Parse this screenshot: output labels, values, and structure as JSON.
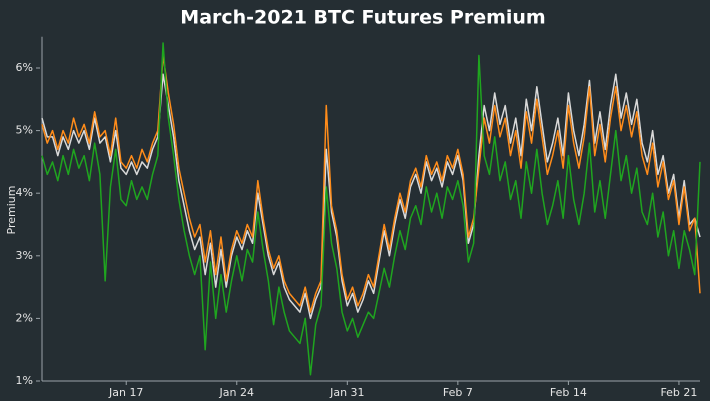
{
  "chart_data": {
    "type": "line",
    "title": "March-2021 BTC Futures Premium",
    "y_label": "Premium",
    "categories": [
      null,
      null,
      null,
      null,
      null,
      null,
      null,
      null,
      null,
      null,
      null,
      null,
      null,
      null,
      null,
      null,
      "Jan 17",
      null,
      null,
      null,
      null,
      null,
      null,
      null,
      null,
      null,
      null,
      null,
      null,
      null,
      null,
      null,
      null,
      null,
      null,
      null,
      null,
      "Jan 24",
      null,
      null,
      null,
      null,
      null,
      null,
      null,
      null,
      null,
      null,
      null,
      null,
      null,
      null,
      null,
      null,
      null,
      null,
      null,
      null,
      "Jan 31",
      null,
      null,
      null,
      null,
      null,
      null,
      null,
      null,
      null,
      null,
      null,
      null,
      null,
      null,
      null,
      null,
      null,
      null,
      null,
      null,
      "Feb 7",
      null,
      null,
      null,
      null,
      null,
      null,
      null,
      null,
      null,
      null,
      null,
      null,
      null,
      null,
      null,
      null,
      null,
      null,
      null,
      null,
      "Feb 14",
      null,
      null,
      null,
      null,
      null,
      null,
      null,
      null,
      null,
      null,
      null,
      null,
      null,
      null,
      null,
      null,
      null,
      null,
      null,
      null,
      "Feb 21",
      null,
      null,
      null,
      null
    ],
    "series": [
      {
        "color": "#d9d9d9",
        "values": [
          5.2,
          4.9,
          4.9,
          4.6,
          4.9,
          4.7,
          5.0,
          4.8,
          5.0,
          4.7,
          5.2,
          4.8,
          4.9,
          4.5,
          5.0,
          4.4,
          4.3,
          4.5,
          4.3,
          4.5,
          4.4,
          4.7,
          4.9,
          5.9,
          5.4,
          4.9,
          4.2,
          3.8,
          3.4,
          3.1,
          3.3,
          2.7,
          3.2,
          2.5,
          3.1,
          2.5,
          3.0,
          3.3,
          3.1,
          3.4,
          3.2,
          4.0,
          3.5,
          3.0,
          2.7,
          2.9,
          2.5,
          2.3,
          2.2,
          2.1,
          2.4,
          2.0,
          2.3,
          2.5,
          4.7,
          3.7,
          3.3,
          2.6,
          2.2,
          2.4,
          2.1,
          2.3,
          2.6,
          2.4,
          2.9,
          3.4,
          3.0,
          3.5,
          3.9,
          3.6,
          4.1,
          4.3,
          4.0,
          4.5,
          4.2,
          4.4,
          4.1,
          4.5,
          4.3,
          4.6,
          4.2,
          3.2,
          3.5,
          4.6,
          5.4,
          5.0,
          5.6,
          5.1,
          5.4,
          4.8,
          5.2,
          4.6,
          5.5,
          5.0,
          5.7,
          5.1,
          4.5,
          4.8,
          5.2,
          4.6,
          5.6,
          5.0,
          4.6,
          5.1,
          5.8,
          4.8,
          5.3,
          4.7,
          5.4,
          5.9,
          5.2,
          5.6,
          5.1,
          5.5,
          4.8,
          4.5,
          5.0,
          4.3,
          4.6,
          4.0,
          4.3,
          3.6,
          4.2,
          3.5,
          3.6,
          3.3
        ]
      },
      {
        "color": "#ff8c1a",
        "values": [
          5.1,
          4.8,
          5.0,
          4.7,
          5.0,
          4.8,
          5.2,
          4.9,
          5.1,
          4.8,
          5.3,
          4.9,
          5.0,
          4.6,
          5.2,
          4.5,
          4.4,
          4.6,
          4.4,
          4.7,
          4.5,
          4.8,
          5.0,
          6.2,
          5.6,
          5.1,
          4.4,
          4.0,
          3.6,
          3.3,
          3.5,
          2.9,
          3.4,
          2.7,
          3.3,
          2.6,
          3.1,
          3.4,
          3.2,
          3.5,
          3.3,
          4.2,
          3.6,
          3.1,
          2.8,
          3.0,
          2.6,
          2.4,
          2.3,
          2.2,
          2.5,
          2.1,
          2.4,
          2.6,
          5.4,
          3.8,
          3.4,
          2.7,
          2.3,
          2.5,
          2.2,
          2.4,
          2.7,
          2.5,
          3.0,
          3.5,
          3.1,
          3.6,
          4.0,
          3.7,
          4.2,
          4.4,
          4.1,
          4.6,
          4.3,
          4.5,
          4.2,
          4.6,
          4.4,
          4.7,
          4.3,
          3.3,
          3.6,
          4.4,
          5.2,
          4.8,
          5.4,
          4.9,
          5.2,
          4.6,
          5.0,
          4.4,
          5.3,
          4.8,
          5.5,
          4.9,
          4.3,
          4.6,
          5.0,
          4.4,
          5.4,
          4.8,
          4.4,
          4.9,
          5.7,
          4.6,
          5.1,
          4.5,
          5.2,
          5.7,
          5.0,
          5.4,
          4.9,
          5.3,
          4.6,
          4.3,
          4.8,
          4.1,
          4.5,
          3.9,
          4.2,
          3.5,
          4.1,
          3.4,
          3.6,
          2.4
        ]
      },
      {
        "color": "#1fa51f",
        "values": [
          4.6,
          4.3,
          4.5,
          4.2,
          4.6,
          4.3,
          4.7,
          4.4,
          4.6,
          4.2,
          4.8,
          4.3,
          2.6,
          4.1,
          4.7,
          3.9,
          3.8,
          4.2,
          3.9,
          4.1,
          3.9,
          4.3,
          4.6,
          6.4,
          5.2,
          4.6,
          3.9,
          3.4,
          3.0,
          2.7,
          3.0,
          1.5,
          2.9,
          2.0,
          2.7,
          2.1,
          2.6,
          3.0,
          2.6,
          3.1,
          2.9,
          3.7,
          3.1,
          2.6,
          1.9,
          2.5,
          2.1,
          1.8,
          1.7,
          1.6,
          2.0,
          1.1,
          1.9,
          2.2,
          4.1,
          3.2,
          2.8,
          2.1,
          1.8,
          2.0,
          1.7,
          1.9,
          2.1,
          2.0,
          2.4,
          2.8,
          2.5,
          3.0,
          3.4,
          3.1,
          3.6,
          3.8,
          3.5,
          4.1,
          3.7,
          4.0,
          3.6,
          4.1,
          3.9,
          4.2,
          3.8,
          2.9,
          3.2,
          6.2,
          4.6,
          4.3,
          4.9,
          4.2,
          4.5,
          3.9,
          4.2,
          3.6,
          4.5,
          4.0,
          4.7,
          4.0,
          3.5,
          3.8,
          4.2,
          3.6,
          4.6,
          3.9,
          3.5,
          4.0,
          4.8,
          3.7,
          4.2,
          3.6,
          4.3,
          5.0,
          4.2,
          4.6,
          4.0,
          4.4,
          3.7,
          3.5,
          4.0,
          3.3,
          3.7,
          3.0,
          3.4,
          2.8,
          3.4,
          3.1,
          2.7,
          4.5
        ]
      }
    ],
    "ylim": [
      1,
      6.5
    ],
    "yticks": [
      {
        "value": 1,
        "label": "1%"
      },
      {
        "value": 2,
        "label": "2%"
      },
      {
        "value": 3,
        "label": "3%"
      },
      {
        "value": 4,
        "label": "4%"
      },
      {
        "value": 5,
        "label": "5%"
      },
      {
        "value": 6,
        "label": "6%"
      }
    ]
  }
}
